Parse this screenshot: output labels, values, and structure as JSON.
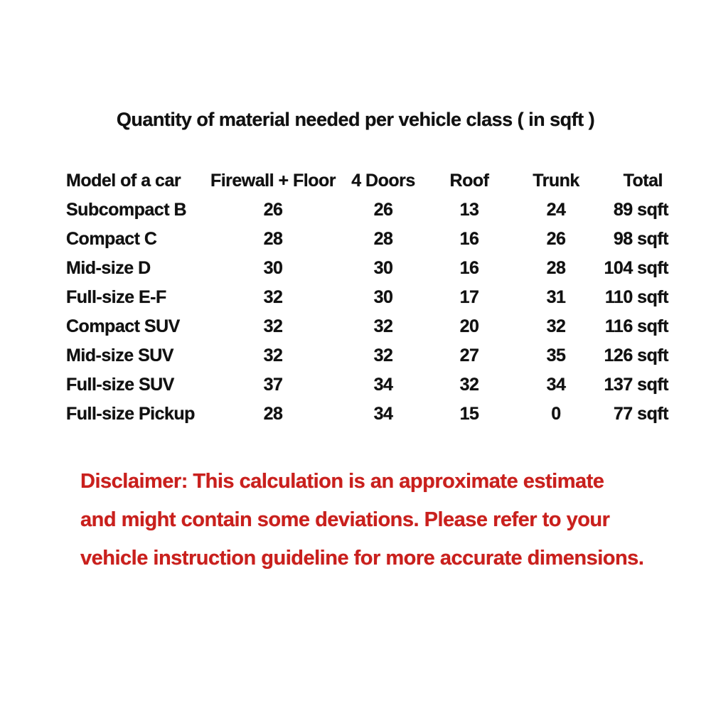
{
  "title": "Quantity of material needed per vehicle class ( in sqft )",
  "table": {
    "headers": [
      "Model of a car",
      "Firewall + Floor",
      "4 Doors",
      "Roof",
      "Trunk",
      "Total"
    ],
    "rows": [
      [
        "Subcompact B",
        "26",
        "26",
        "13",
        "24",
        "89 sqft"
      ],
      [
        "Compact C",
        "28",
        "28",
        "16",
        "26",
        "98 sqft"
      ],
      [
        "Mid-size D",
        "30",
        "30",
        "16",
        "28",
        "104 sqft"
      ],
      [
        "Full-size E-F",
        "32",
        "30",
        "17",
        "31",
        "110 sqft"
      ],
      [
        "Compact SUV",
        "32",
        "32",
        "20",
        "32",
        "116 sqft"
      ],
      [
        "Mid-size SUV",
        "32",
        "32",
        "27",
        "35",
        "126 sqft"
      ],
      [
        "Full-size SUV",
        "37",
        "34",
        "32",
        "34",
        "137 sqft"
      ],
      [
        "Full-size Pickup",
        "28",
        "34",
        "15",
        "0",
        "77 sqft"
      ]
    ]
  },
  "disclaimer": {
    "lines": [
      "Disclaimer: This calculation is an approximate estimate",
      "and might contain some deviations. Please refer to your",
      "vehicle instruction guideline for more accurate dimensions."
    ]
  },
  "colors": {
    "text": "#111111",
    "disclaimer_red": "#c9201d",
    "background": "#ffffff"
  },
  "chart_data": {
    "type": "table",
    "title": "Quantity of material needed per vehicle class ( in sqft )",
    "columns": [
      "Model of a car",
      "Firewall + Floor",
      "4 Doors",
      "Roof",
      "Trunk",
      "Total"
    ],
    "units": "sqft",
    "rows": [
      {
        "model": "Subcompact B",
        "firewall_floor": 26,
        "four_doors": 26,
        "roof": 13,
        "trunk": 24,
        "total_sqft": 89
      },
      {
        "model": "Compact C",
        "firewall_floor": 28,
        "four_doors": 28,
        "roof": 16,
        "trunk": 26,
        "total_sqft": 98
      },
      {
        "model": "Mid-size D",
        "firewall_floor": 30,
        "four_doors": 30,
        "roof": 16,
        "trunk": 28,
        "total_sqft": 104
      },
      {
        "model": "Full-size E-F",
        "firewall_floor": 32,
        "four_doors": 30,
        "roof": 17,
        "trunk": 31,
        "total_sqft": 110
      },
      {
        "model": "Compact SUV",
        "firewall_floor": 32,
        "four_doors": 32,
        "roof": 20,
        "trunk": 32,
        "total_sqft": 116
      },
      {
        "model": "Mid-size SUV",
        "firewall_floor": 32,
        "four_doors": 32,
        "roof": 27,
        "trunk": 35,
        "total_sqft": 126
      },
      {
        "model": "Full-size SUV",
        "firewall_floor": 37,
        "four_doors": 34,
        "roof": 32,
        "trunk": 34,
        "total_sqft": 137
      },
      {
        "model": "Full-size Pickup",
        "firewall_floor": 28,
        "four_doors": 34,
        "roof": 15,
        "trunk": 0,
        "total_sqft": 77
      }
    ]
  }
}
